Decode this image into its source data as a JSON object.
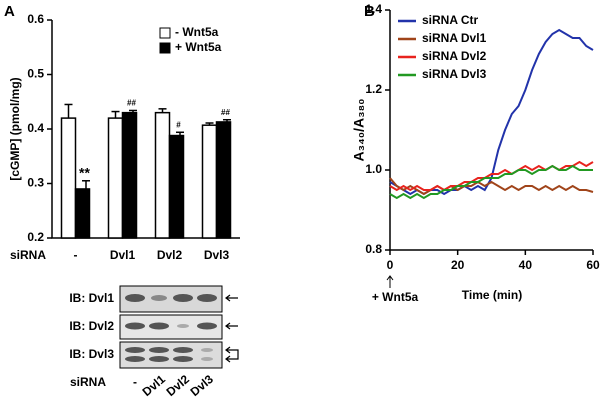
{
  "panel_labels": [
    "A",
    "B"
  ],
  "chart_data": [
    {
      "type": "bar",
      "ylabel": "[cGMP] (pmol/mg)",
      "category_title": "siRNA",
      "categories": [
        "-",
        "Dvl1",
        "Dvl2",
        "Dvl3"
      ],
      "ylim": [
        0.2,
        0.6
      ],
      "yticks": [
        0.2,
        0.3,
        0.4,
        0.5,
        0.6
      ],
      "series": [
        {
          "name": "- Wnt5a",
          "color": "#ffffff",
          "values": [
            0.42,
            0.42,
            0.43,
            0.407
          ],
          "errors": [
            0.025,
            0.012,
            0.007,
            0.004
          ]
        },
        {
          "name": "+ Wnt5a",
          "color": "#000000",
          "values": [
            0.29,
            0.43,
            0.388,
            0.413
          ],
          "errors": [
            0.015,
            0.004,
            0.006,
            0.004
          ],
          "significance": [
            "**",
            "##",
            "#",
            "##"
          ]
        }
      ]
    },
    {
      "type": "line",
      "xlabel": "Time (min)",
      "ylabel": "A₃₄₀/A₃₈₀",
      "annotation": "+ Wnt5a",
      "xlim": [
        0,
        60
      ],
      "xticks": [
        0,
        20,
        40,
        60
      ],
      "ylim": [
        0.8,
        1.4
      ],
      "yticks": [
        0.8,
        {
          "value": 1,
          "label": "1.0"
        },
        1.2,
        1.4
      ],
      "x": [
        0,
        2,
        4,
        6,
        8,
        10,
        12,
        14,
        16,
        18,
        20,
        22,
        24,
        26,
        28,
        30,
        32,
        34,
        36,
        38,
        40,
        42,
        44,
        46,
        48,
        50,
        52,
        54,
        56,
        58,
        60
      ],
      "series": [
        {
          "name": "siRNA Ctr",
          "color": "#2233aa",
          "values": [
            0.97,
            0.96,
            0.95,
            0.94,
            0.95,
            0.94,
            0.95,
            0.95,
            0.94,
            0.95,
            0.95,
            0.96,
            0.95,
            0.96,
            0.95,
            0.98,
            1.05,
            1.1,
            1.14,
            1.16,
            1.2,
            1.25,
            1.29,
            1.32,
            1.34,
            1.35,
            1.34,
            1.33,
            1.33,
            1.31,
            1.3
          ]
        },
        {
          "name": "siRNA Dvl1",
          "color": "#a0441a",
          "values": [
            0.98,
            0.96,
            0.95,
            0.96,
            0.95,
            0.94,
            0.95,
            0.96,
            0.95,
            0.96,
            0.95,
            0.96,
            0.96,
            0.97,
            0.96,
            0.97,
            0.96,
            0.95,
            0.96,
            0.95,
            0.96,
            0.96,
            0.95,
            0.96,
            0.95,
            0.96,
            0.95,
            0.96,
            0.95,
            0.95,
            0.945
          ]
        },
        {
          "name": "siRNA Dvl2",
          "color": "#e8231e",
          "values": [
            0.96,
            0.95,
            0.96,
            0.95,
            0.96,
            0.95,
            0.95,
            0.96,
            0.95,
            0.96,
            0.96,
            0.97,
            0.97,
            0.98,
            0.98,
            0.99,
            0.99,
            1.0,
            0.99,
            1.0,
            1.01,
            1.0,
            1.01,
            1.0,
            1.01,
            1.0,
            1.01,
            1.01,
            1.02,
            1.01,
            1.02
          ]
        },
        {
          "name": "siRNA Dvl3",
          "color": "#229922",
          "values": [
            0.94,
            0.93,
            0.94,
            0.93,
            0.94,
            0.93,
            0.94,
            0.94,
            0.95,
            0.95,
            0.96,
            0.96,
            0.97,
            0.97,
            0.98,
            0.98,
            0.98,
            0.99,
            0.99,
            1.0,
            1.0,
            0.99,
            1.0,
            1.0,
            1.01,
            1.0,
            1.0,
            1.01,
            1.0,
            1.0,
            1.0
          ]
        }
      ]
    }
  ],
  "blot": {
    "rows": [
      "IB: Dvl1",
      "IB: Dvl2",
      "IB: Dvl3"
    ],
    "lane_title": "siRNA",
    "lanes": [
      "-",
      "Dvl1",
      "Dvl2",
      "Dvl3"
    ]
  }
}
